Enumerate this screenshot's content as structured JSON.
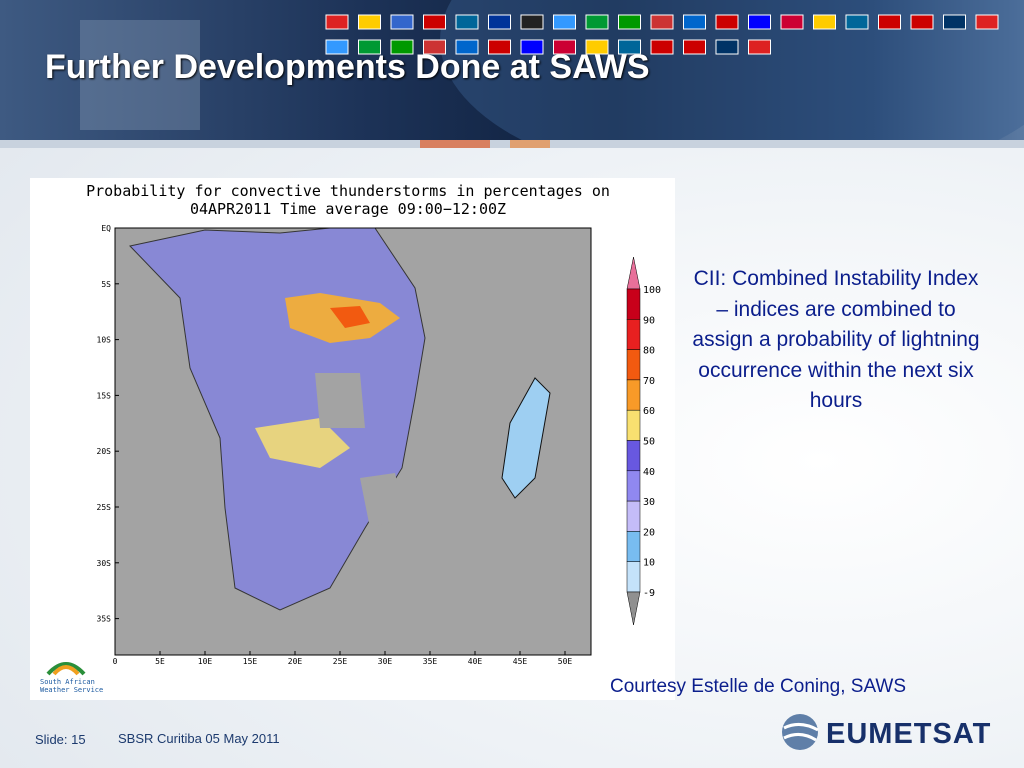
{
  "header": {
    "title": "Further Developments Done at SAWS"
  },
  "figure": {
    "title_lines": [
      "Probability for convective thunderstorms in percentages on",
      "04APR2011 Time average 09:00−12:00Z"
    ],
    "lat_labels": [
      "EQ",
      "5S",
      "10S",
      "15S",
      "20S",
      "25S",
      "30S",
      "35S"
    ],
    "lon_labels": [
      "0",
      "5E",
      "10E",
      "15E",
      "20E",
      "25E",
      "30E",
      "35E",
      "40E",
      "45E",
      "50E"
    ],
    "colorbar": {
      "labels": [
        "100",
        "90",
        "80",
        "70",
        "60",
        "50",
        "40",
        "30",
        "20",
        "10",
        "-9"
      ],
      "top_color": "#e8709a",
      "colors": [
        "#c8001a",
        "#e82020",
        "#f25a10",
        "#f89a28",
        "#f8e070",
        "#6858e0",
        "#9088f0",
        "#c4bcf8",
        "#78bcf0",
        "#c4e2fa"
      ],
      "low_color": "#ffffff",
      "bottom_color": "#909090"
    }
  },
  "description": "CII: Combined Instability Index – indices are combined to assign a probability of lightning occurrence within the next six hours",
  "courtesy": "Courtesy Estelle de Coning, SAWS",
  "logo_saws": [
    "South African",
    "Weather Service"
  ],
  "logo_eumetsat": "EUMETSAT",
  "footer": {
    "slide": "Slide: 15",
    "event": "SBSR Curitiba 05 May 2011"
  }
}
